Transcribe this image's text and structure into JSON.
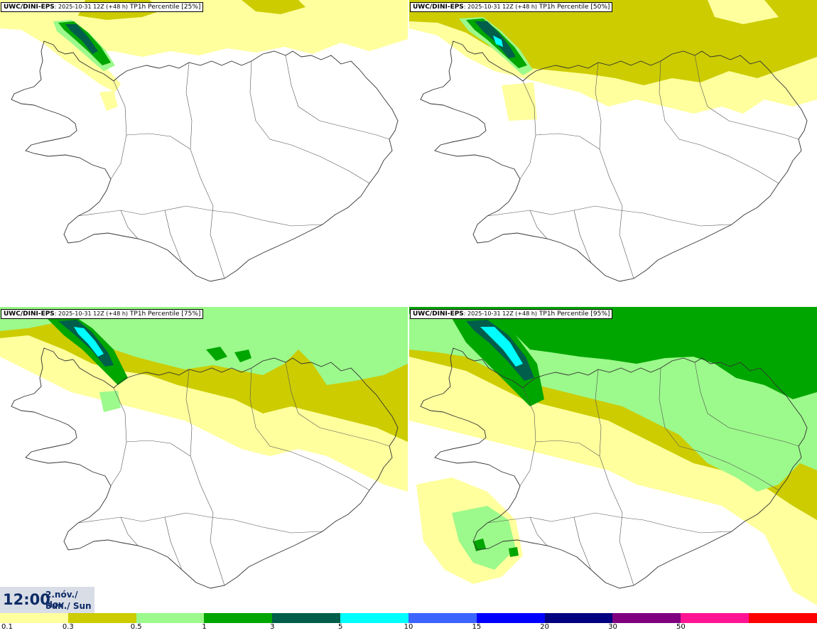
{
  "panels": [
    {
      "model": "UWC/DINI-EPS",
      "meta": ": 2025-10-31 12Z (+48 h)",
      "field": "TP1h Percentile [25%]",
      "level": 0
    },
    {
      "model": "UWC/DINI-EPS",
      "meta": ": 2025-10-31 12Z (+48 h)",
      "field": "TP1h Percentile [50%]",
      "level": 1
    },
    {
      "model": "UWC/DINI-EPS",
      "meta": ": 2025-10-31 12Z (+48 h)",
      "field": "TP1h Percentile [75%]",
      "level": 2
    },
    {
      "model": "UWC/DINI-EPS",
      "meta": ": 2025-10-31 12Z (+48 h)",
      "field": "TP1h Percentile [95%]",
      "level": 3
    }
  ],
  "valid_time": {
    "time": "12:00",
    "date_line1": "2.nóv./ Nov",
    "date_line2": "Sun./ Sun"
  },
  "colorbar": {
    "colors": [
      "#ffff9e",
      "#cccc00",
      "#9cf98b",
      "#00a600",
      "#005e4a",
      "#00ffff",
      "#3c64ff",
      "#0000ff",
      "#000080",
      "#800080",
      "#ff1493",
      "#ff0000"
    ],
    "labels": [
      "0.1",
      "0.3",
      "0.5",
      "1",
      "3",
      "5",
      "10",
      "15",
      "20",
      "30",
      "50"
    ]
  }
}
